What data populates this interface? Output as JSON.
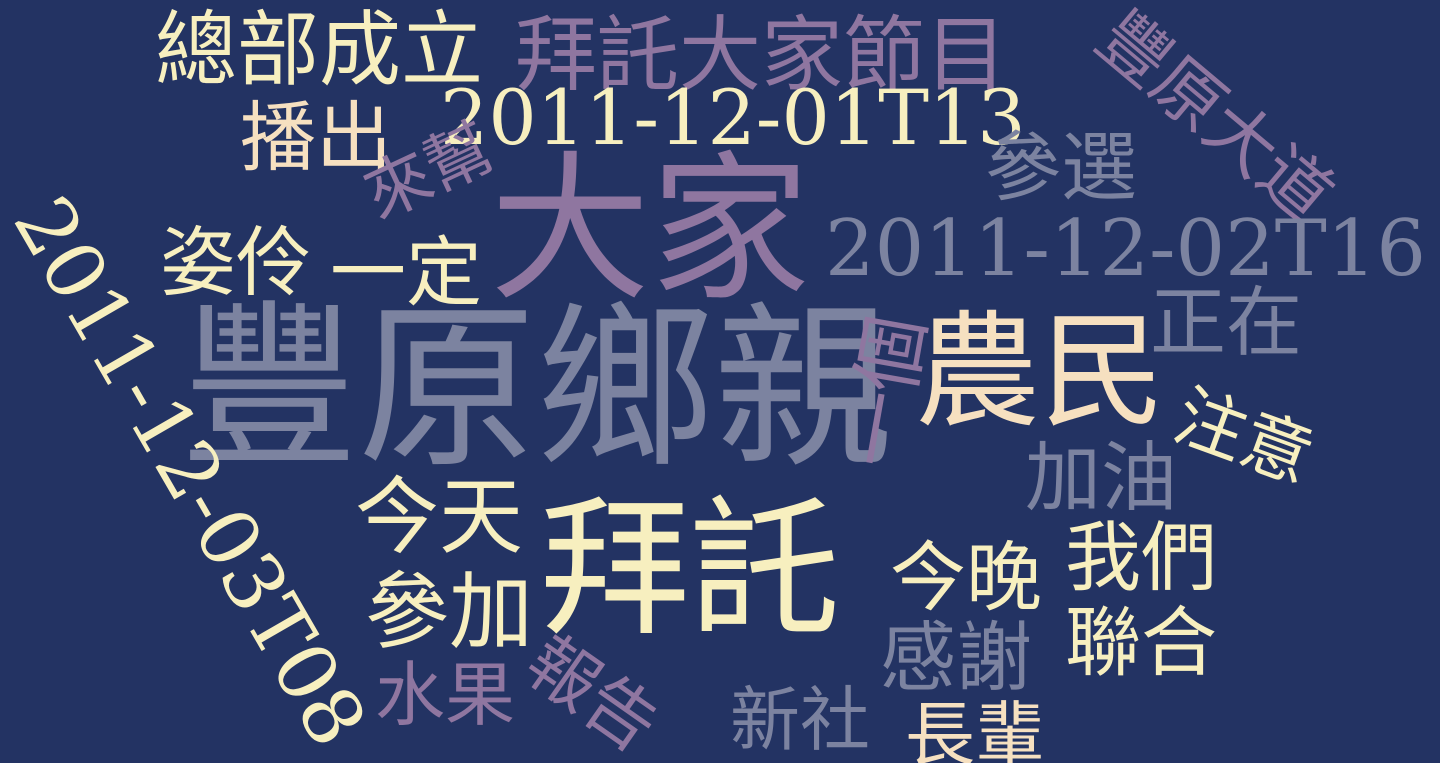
{
  "colors": {
    "background": "#233363",
    "cream": "#f7efbf",
    "lavender": "#8f76a0",
    "slate": "#7c83a0",
    "peach": "#f6e0c0"
  },
  "words": [
    {
      "text": "豐原鄉親",
      "color": "#7c83a0"
    },
    {
      "text": "大家",
      "color": "#8f76a0"
    },
    {
      "text": "拜託",
      "color": "#f7efbf"
    },
    {
      "text": "農民",
      "color": "#f6e0c0"
    },
    {
      "text": "2011-12-03T08",
      "color": "#f7efbf"
    },
    {
      "text": "總部成立",
      "color": "#f7efbf"
    },
    {
      "text": "拜託大家節目",
      "color": "#8f76a0"
    },
    {
      "text": "2011-12-01T13",
      "color": "#f7efbf"
    },
    {
      "text": "播出",
      "color": "#f6e0c0"
    },
    {
      "text": "豐原大道",
      "color": "#8f76a0"
    },
    {
      "text": "參選",
      "color": "#7c83a0"
    },
    {
      "text": "2011-12-02T16",
      "color": "#7c83a0"
    },
    {
      "text": "姿伶",
      "color": "#f7efbf"
    },
    {
      "text": "來幫",
      "color": "#8f76a0"
    },
    {
      "text": "一定",
      "color": "#f7efbf"
    },
    {
      "text": "正在",
      "color": "#7c83a0"
    },
    {
      "text": "注意",
      "color": "#f7efbf"
    },
    {
      "text": "加油",
      "color": "#7c83a0"
    },
    {
      "text": "一個",
      "color": "#8f76a0"
    },
    {
      "text": "今天",
      "color": "#f7efbf"
    },
    {
      "text": "參加",
      "color": "#f7efbf"
    },
    {
      "text": "今晚",
      "color": "#f7efbf"
    },
    {
      "text": "我們",
      "color": "#f7efbf"
    },
    {
      "text": "感謝",
      "color": "#7c83a0"
    },
    {
      "text": "聯合",
      "color": "#f7efbf"
    },
    {
      "text": "水果",
      "color": "#8f76a0"
    },
    {
      "text": "報告",
      "color": "#8f76a0"
    },
    {
      "text": "新社",
      "color": "#7c83a0"
    },
    {
      "text": "長輩",
      "color": "#f6e0c0"
    }
  ]
}
